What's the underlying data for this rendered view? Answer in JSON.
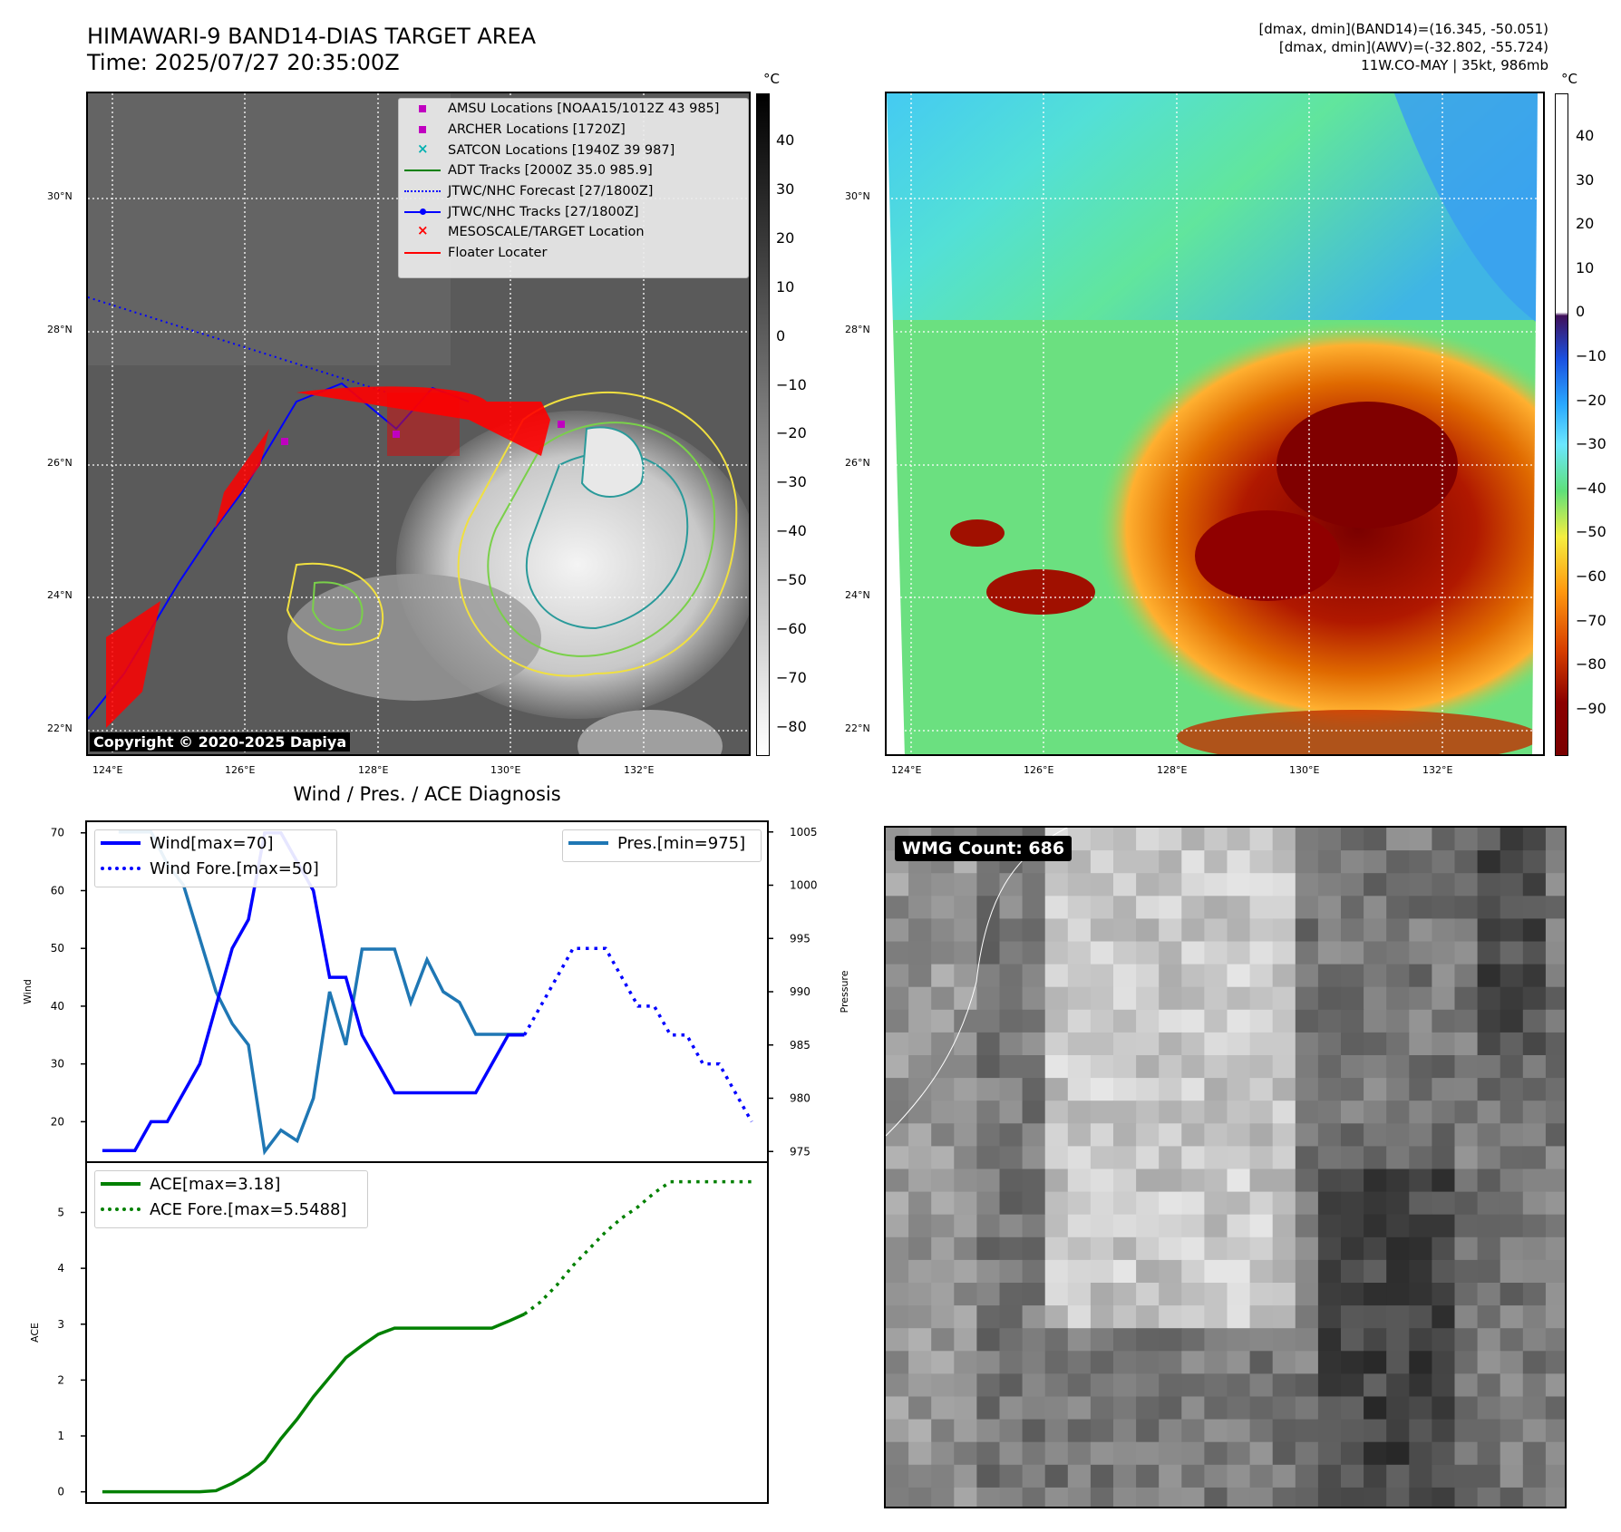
{
  "header": {
    "title_line1": "HIMAWARI-9 BAND14-DIAS TARGET AREA",
    "title_line2": "Time: 2025/07/27 20:35:00Z",
    "meta_line1": "[dmax, dmin](BAND14)=(16.345, -50.051)",
    "meta_line2": "[dmax, dmin](AWV)=(-32.802, -55.724)",
    "meta_line3": "11W.CO-MAY | 35kt, 986mb"
  },
  "map": {
    "lat_ticks": [
      "30°N",
      "28°N",
      "26°N",
      "24°N",
      "22°N"
    ],
    "lon_ticks": [
      "124°E",
      "126°E",
      "128°E",
      "130°E",
      "132°E"
    ],
    "copyright": "Copyright © 2020-2025 Dapiya",
    "legend": [
      {
        "label": "AMSU Locations [NOAA15/1012Z 43 985]",
        "color": "#c000c0",
        "marker": "square"
      },
      {
        "label": "ARCHER Locations [1720Z]",
        "color": "#c000c0",
        "marker": "square"
      },
      {
        "label": "SATCON Locations [1940Z 39 987]",
        "color": "#00b0b0",
        "marker": "x"
      },
      {
        "label": "ADT Tracks [2000Z 35.0 985.9]",
        "color": "#008000",
        "marker": "line"
      },
      {
        "label": "JTWC/NHC Forecast [27/1800Z]",
        "color": "#0000ff",
        "marker": "dotted"
      },
      {
        "label": "JTWC/NHC Tracks [27/1800Z]",
        "color": "#0000ff",
        "marker": "line-dot"
      },
      {
        "label": "MESOSCALE/TARGET Location",
        "color": "#ff0000",
        "marker": "x"
      },
      {
        "label": "Floater Locater",
        "color": "#ff0000",
        "marker": "line"
      }
    ]
  },
  "colorbar_ir": {
    "unit": "°C",
    "ticks": [
      "40",
      "30",
      "20",
      "10",
      "0",
      "−10",
      "−20",
      "−30",
      "−40",
      "−50",
      "−60",
      "−70",
      "−80"
    ]
  },
  "colorbar_awv": {
    "unit": "°C",
    "ticks": [
      "40",
      "30",
      "20",
      "10",
      "0",
      "−10",
      "−20",
      "−30",
      "−40",
      "−50",
      "−60",
      "−70",
      "−80",
      "−90"
    ]
  },
  "wmg": {
    "label": "WMG Count: 686"
  },
  "chart_data": [
    {
      "type": "line",
      "title": "Wind / Pres. / ACE Diagnosis",
      "ylabel": "Wind",
      "ylim": [
        13,
        72
      ],
      "y_ticks": [
        20,
        30,
        40,
        50,
        60,
        70
      ],
      "series": [
        {
          "name": "Wind[max=70]",
          "style": "solid",
          "color": "#0000ff",
          "x": [
            0,
            1,
            2,
            3,
            4,
            5,
            6,
            7,
            8,
            9,
            10,
            11,
            12,
            13,
            14,
            15,
            16,
            17,
            18,
            19,
            20,
            21,
            22,
            23,
            24,
            25,
            26,
            27,
            28,
            29,
            30,
            31,
            32,
            33,
            34,
            35,
            36,
            37,
            38,
            39,
            40
          ],
          "values": [
            15,
            15,
            15,
            20,
            20,
            25,
            30,
            40,
            50,
            55,
            70,
            70,
            65,
            60,
            45,
            45,
            35,
            30,
            25,
            25,
            25,
            25,
            25,
            25,
            30,
            35,
            35,
            null,
            null,
            null,
            null,
            null,
            null,
            null,
            null,
            null,
            null,
            null,
            null,
            null,
            null
          ]
        },
        {
          "name": "Wind Fore.[max=50]",
          "style": "dotted",
          "color": "#0000ff",
          "x": [
            0,
            1,
            2,
            3,
            4,
            5,
            6,
            7,
            8,
            9,
            10,
            11,
            12,
            13,
            14,
            15,
            16,
            17,
            18,
            19,
            20,
            21,
            22,
            23,
            24,
            25,
            26,
            27,
            28,
            29,
            30,
            31,
            32,
            33,
            34,
            35,
            36,
            37,
            38,
            39,
            40
          ],
          "values": [
            null,
            null,
            null,
            null,
            null,
            null,
            null,
            null,
            null,
            null,
            null,
            null,
            null,
            null,
            null,
            null,
            null,
            null,
            null,
            null,
            null,
            null,
            null,
            null,
            null,
            null,
            35,
            40,
            45,
            50,
            50,
            50,
            45,
            40,
            40,
            35,
            35,
            30,
            30,
            25,
            20
          ]
        }
      ],
      "y2": {
        "ylabel": "Pressure",
        "ylim": [
          974,
          1006
        ],
        "y_ticks": [
          975,
          980,
          985,
          990,
          995,
          1000,
          1005
        ],
        "series": [
          {
            "name": "Pres.[min=975]",
            "style": "solid",
            "color": "#1f77b4",
            "x": [
              1,
              2,
              3,
              4,
              5,
              6,
              7,
              8,
              9,
              10,
              11,
              12,
              13,
              14,
              15,
              16,
              17,
              18,
              19,
              20,
              21,
              22,
              23,
              24,
              25,
              26
            ],
            "values": [
              1005,
              1005,
              1005,
              1002,
              1000,
              995,
              990,
              987,
              985,
              975,
              977,
              976,
              980,
              990,
              985,
              994,
              994,
              994,
              989,
              993,
              990,
              989,
              986,
              986,
              986,
              986
            ]
          }
        ]
      }
    },
    {
      "type": "line",
      "ylabel": "ACE",
      "ylim": [
        -0.2,
        5.9
      ],
      "y_ticks": [
        0,
        1,
        2,
        3,
        4,
        5
      ],
      "series": [
        {
          "name": "ACE[max=3.18]",
          "style": "solid",
          "color": "#008000",
          "x": [
            0,
            1,
            2,
            3,
            4,
            5,
            6,
            7,
            8,
            9,
            10,
            11,
            12,
            13,
            14,
            15,
            16,
            17,
            18,
            19,
            20,
            21,
            22,
            23,
            24,
            25,
            26
          ],
          "values": [
            0,
            0,
            0,
            0,
            0,
            0,
            0,
            0.02,
            0.15,
            0.32,
            0.55,
            0.95,
            1.3,
            1.7,
            2.05,
            2.4,
            2.62,
            2.82,
            2.93,
            2.93,
            2.93,
            2.93,
            2.93,
            2.93,
            2.93,
            3.05,
            3.18
          ]
        },
        {
          "name": "ACE Fore.[max=5.5488]",
          "style": "dotted",
          "color": "#008000",
          "x": [
            26,
            27,
            28,
            29,
            30,
            31,
            32,
            33,
            34,
            35,
            36,
            37,
            38,
            39,
            40
          ],
          "values": [
            3.18,
            3.4,
            3.7,
            4.05,
            4.35,
            4.65,
            4.9,
            5.1,
            5.35,
            5.55,
            5.55,
            5.55,
            5.55,
            5.55,
            5.55
          ]
        }
      ]
    }
  ]
}
